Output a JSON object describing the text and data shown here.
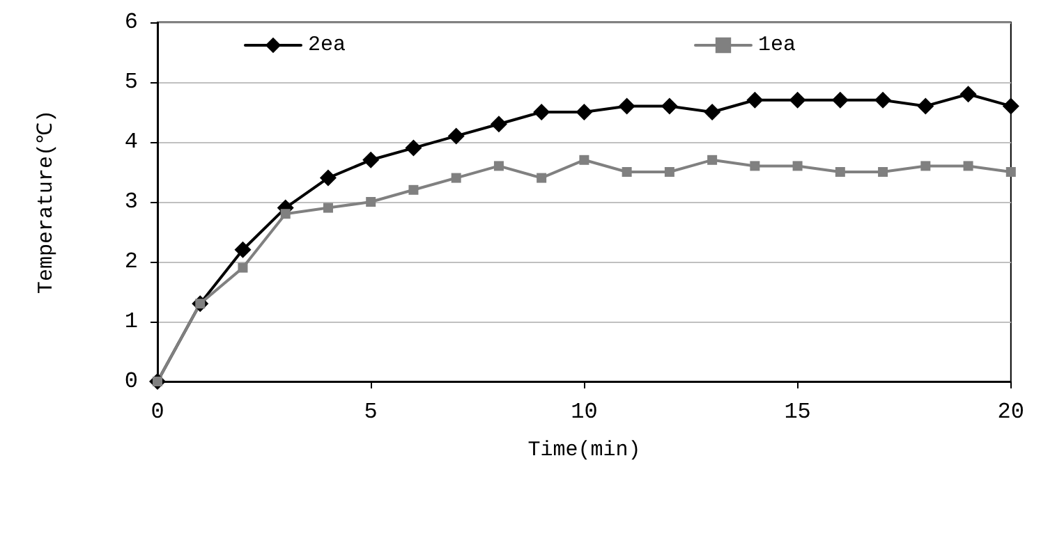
{
  "chart_data": {
    "type": "line",
    "xlabel": "Time(min)",
    "ylabel": "Temperature(℃)",
    "x": [
      0,
      1,
      2,
      3,
      4,
      5,
      6,
      7,
      8,
      9,
      10,
      11,
      12,
      13,
      14,
      15,
      16,
      17,
      18,
      19,
      20
    ],
    "series": [
      {
        "name": "2ea",
        "color": "#000000",
        "marker": "diamond",
        "values": [
          0,
          1.3,
          2.2,
          2.9,
          3.4,
          3.7,
          3.9,
          4.1,
          4.3,
          4.5,
          4.5,
          4.6,
          4.6,
          4.5,
          4.7,
          4.7,
          4.7,
          4.7,
          4.6,
          4.8,
          4.6
        ]
      },
      {
        "name": "1ea",
        "color": "#808080",
        "marker": "square",
        "values": [
          0,
          1.3,
          1.9,
          2.8,
          2.9,
          3.0,
          3.2,
          3.4,
          3.6,
          3.4,
          3.7,
          3.5,
          3.5,
          3.7,
          3.6,
          3.6,
          3.5,
          3.5,
          3.6,
          3.6,
          3.5
        ]
      }
    ],
    "xlim": [
      0,
      20
    ],
    "xticks": [
      0,
      5,
      10,
      15,
      20
    ],
    "ylim": [
      0,
      6
    ],
    "yticks": [
      0,
      1,
      2,
      3,
      4,
      5,
      6
    ],
    "grid": "y",
    "legend": "top",
    "line_style": "solid"
  }
}
